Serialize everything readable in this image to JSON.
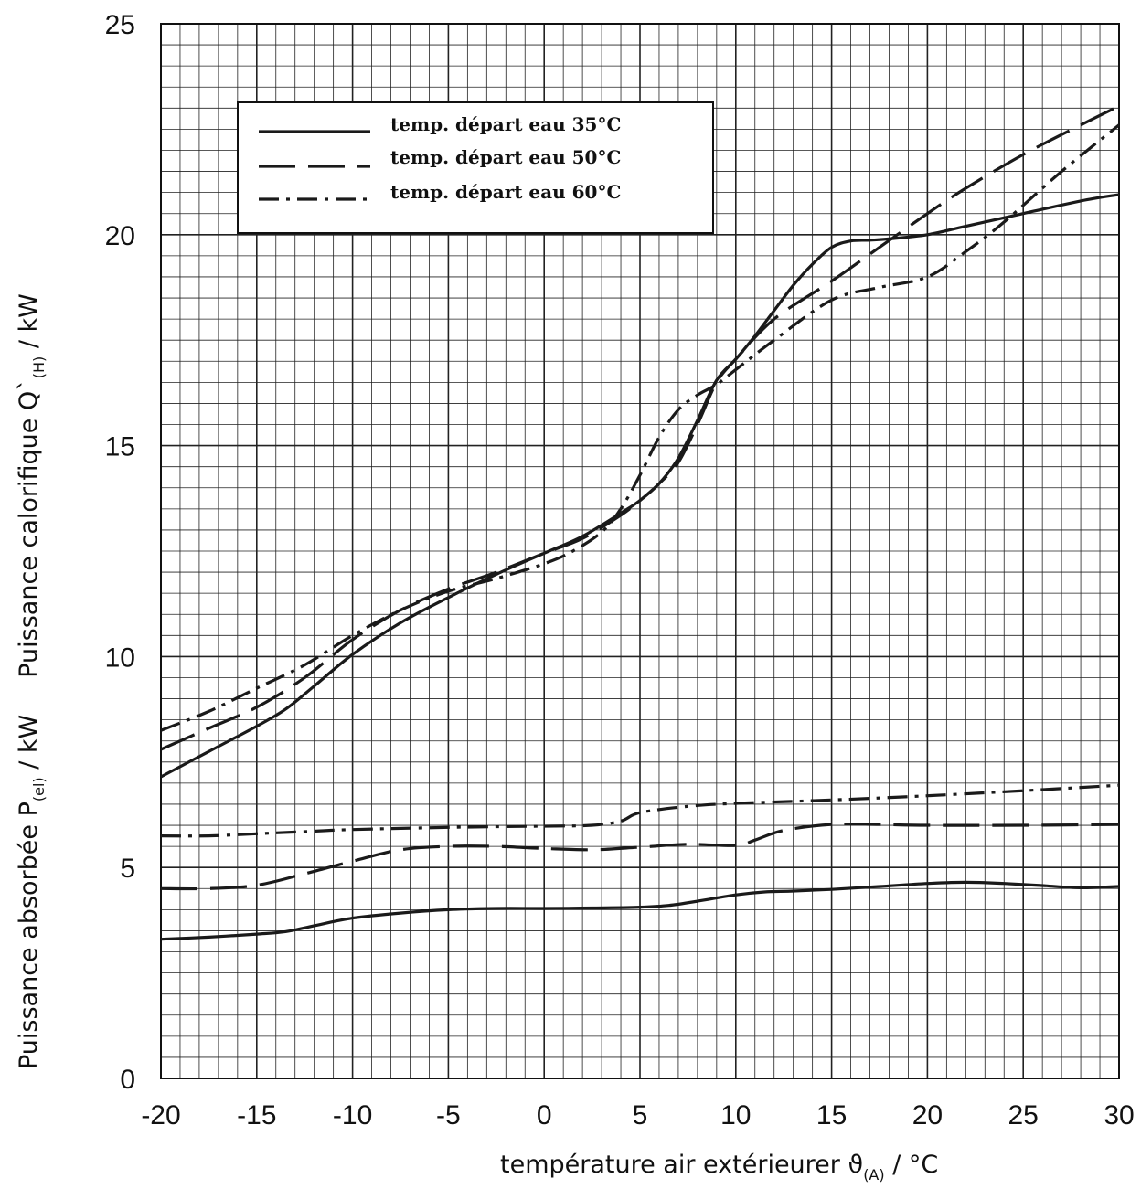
{
  "chart_data": {
    "type": "line",
    "xlabel": "température air extérieurer ϑ(A) / °C",
    "xlabel_main": "température air extérieurer ",
    "xlabel_symbol": "ϑ",
    "xlabel_sub": "(A)",
    "xlabel_unit": " / °C",
    "ylabel_el_main": "Puissance absorbée P",
    "ylabel_el_sub": "(el)",
    "ylabel_el_unit": " / kW",
    "ylabel_h_main": "Puissance calorifique  Q`",
    "ylabel_h_sub": "(H)",
    "ylabel_h_unit": " / kW",
    "xlim": [
      -20,
      30
    ],
    "ylim": [
      0,
      25
    ],
    "x_ticks": [
      -20,
      -15,
      -10,
      -5,
      0,
      5,
      10,
      15,
      20,
      25,
      30
    ],
    "y_ticks": [
      0,
      5,
      10,
      15,
      20,
      25
    ],
    "grid": true,
    "legend_position": "top-left",
    "legend": [
      {
        "label": "temp. départ eau 35°C",
        "style": "solid"
      },
      {
        "label": "temp. départ eau 50°C",
        "style": "dashed"
      },
      {
        "label": "temp. départ eau 60°C",
        "style": "dashdot"
      }
    ],
    "series": [
      {
        "group": "heating",
        "style": "solid",
        "x": [
          -20,
          -17.5,
          -15,
          -13.5,
          -12,
          -10,
          -7.5,
          -5,
          -2.5,
          0,
          2,
          4,
          5,
          6,
          7,
          8,
          9,
          10,
          11,
          12,
          13,
          14,
          15,
          16,
          17,
          18,
          20,
          22,
          25,
          28,
          30
        ],
        "y": [
          7.15,
          7.75,
          8.35,
          8.75,
          9.3,
          10.05,
          10.8,
          11.4,
          11.95,
          12.45,
          12.85,
          13.4,
          13.7,
          14.1,
          14.7,
          15.6,
          16.55,
          17.05,
          17.6,
          18.2,
          18.8,
          19.3,
          19.7,
          19.85,
          19.87,
          19.9,
          20.0,
          20.2,
          20.5,
          20.8,
          20.95
        ]
      },
      {
        "group": "heating",
        "style": "dashed",
        "x": [
          -20,
          -17.5,
          -15,
          -12.5,
          -10,
          -7.5,
          -5,
          -2.5,
          0,
          2,
          4,
          5,
          6,
          7,
          8,
          9,
          10,
          12,
          15,
          17.5,
          20,
          22,
          25,
          28,
          30
        ],
        "y": [
          7.8,
          8.3,
          8.8,
          9.5,
          10.4,
          11.1,
          11.6,
          12.0,
          12.45,
          12.8,
          13.35,
          13.7,
          14.1,
          14.6,
          15.5,
          16.5,
          17.05,
          18.0,
          18.9,
          19.7,
          20.5,
          21.1,
          21.9,
          22.6,
          23.05
        ]
      },
      {
        "group": "heating",
        "style": "dashdot",
        "x": [
          -20,
          -17.5,
          -15,
          -12.5,
          -10,
          -7.5,
          -5,
          -2.5,
          0,
          1.5,
          3,
          4,
          5,
          6,
          7,
          8,
          9,
          10,
          12,
          15,
          17.5,
          20,
          22,
          24,
          27,
          30
        ],
        "y": [
          8.25,
          8.7,
          9.25,
          9.8,
          10.5,
          11.1,
          11.55,
          11.85,
          12.2,
          12.5,
          12.95,
          13.5,
          14.3,
          15.2,
          15.85,
          16.2,
          16.45,
          16.8,
          17.5,
          18.45,
          18.75,
          19.0,
          19.6,
          20.3,
          21.5,
          22.6
        ]
      },
      {
        "group": "electric",
        "style": "solid",
        "x": [
          -20,
          -17.5,
          -15,
          -13.5,
          -12,
          -10,
          -7.5,
          -5,
          -2.5,
          0,
          2.5,
          5,
          6.5,
          8,
          10,
          11.5,
          13,
          15,
          17.5,
          20,
          22,
          24,
          26,
          28,
          30
        ],
        "y": [
          3.3,
          3.35,
          3.42,
          3.48,
          3.62,
          3.8,
          3.92,
          4.0,
          4.03,
          4.03,
          4.04,
          4.06,
          4.1,
          4.2,
          4.35,
          4.42,
          4.44,
          4.48,
          4.55,
          4.62,
          4.65,
          4.62,
          4.57,
          4.52,
          4.55
        ]
      },
      {
        "group": "electric",
        "style": "dashed",
        "x": [
          -20,
          -17.5,
          -15,
          -12.5,
          -10,
          -7.5,
          -5,
          -2.5,
          0,
          2.5,
          5,
          7.5,
          10,
          11,
          12.5,
          15,
          17.5,
          20,
          25,
          30
        ],
        "y": [
          4.5,
          4.5,
          4.58,
          4.85,
          5.15,
          5.42,
          5.5,
          5.5,
          5.45,
          5.42,
          5.48,
          5.55,
          5.52,
          5.65,
          5.88,
          6.02,
          6.02,
          6.0,
          6.0,
          6.02
        ]
      },
      {
        "group": "electric",
        "style": "dashdot",
        "x": [
          -20,
          -17.5,
          -15,
          -12.5,
          -10,
          -5,
          0,
          2.5,
          4,
          5,
          7.5,
          10,
          15,
          20,
          25,
          30
        ],
        "y": [
          5.75,
          5.75,
          5.8,
          5.85,
          5.9,
          5.95,
          5.98,
          6.0,
          6.1,
          6.3,
          6.45,
          6.52,
          6.6,
          6.7,
          6.82,
          6.95
        ]
      }
    ]
  }
}
